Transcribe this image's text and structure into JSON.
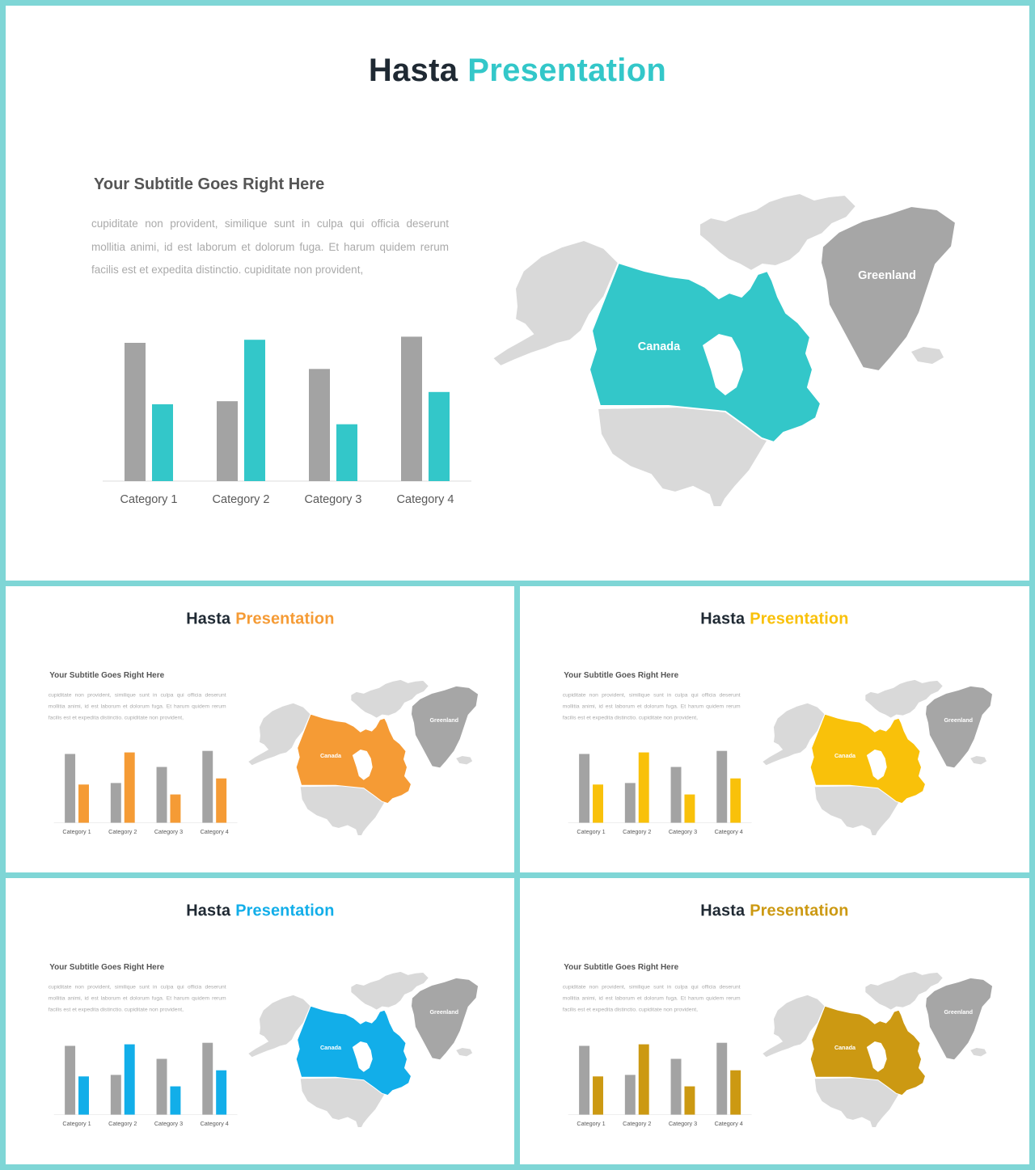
{
  "slides": [
    {
      "title_main": "Hasta",
      "title_accent": "Presentation",
      "accent_color": "#33c7c9",
      "subtitle": "Your Subtitle Goes Right Here",
      "body": "cupiditate non provident, similique sunt in culpa qui officia deserunt mollitia animi, id est laborum et dolorum fuga. Et harum quidem rerum facilis est et expedita distinctio. cupiditate non provident,",
      "map_labels": {
        "canada": "Canada",
        "greenland": "Greenland"
      },
      "chart_data": {
        "type": "bar",
        "categories": [
          "Category 1",
          "Category 2",
          "Category 3",
          "Category 4"
        ],
        "series": [
          {
            "values": [
              4.5,
              2.6,
              3.65,
              4.7
            ],
            "color": "#a3a3a3"
          },
          {
            "values": [
              2.5,
              4.6,
              1.85,
              2.9
            ],
            "color": "#33c7c9"
          }
        ],
        "ylim": [
          0,
          5
        ],
        "grid": false
      }
    },
    {
      "title_main": "Hasta",
      "title_accent": "Presentation",
      "accent_color": "#f59b35",
      "subtitle": "Your Subtitle Goes Right Here",
      "body": "cupiditate non provident, similique sunt in culpa qui officia deserunt mollitia animi, id est laborum et dolorum fuga. Et harum quidem rerum facilis est et expedita distinctio. cupiditate non provident,",
      "map_labels": {
        "canada": "Canada",
        "greenland": "Greenland"
      },
      "chart_data": {
        "type": "bar",
        "categories": [
          "Category 1",
          "Category 2",
          "Category 3",
          "Category 4"
        ],
        "series": [
          {
            "values": [
              4.5,
              2.6,
              3.65,
              4.7
            ],
            "color": "#a3a3a3"
          },
          {
            "values": [
              2.5,
              4.6,
              1.85,
              2.9
            ],
            "color": "#f59b35"
          }
        ],
        "ylim": [
          0,
          5
        ],
        "grid": false
      }
    },
    {
      "title_main": "Hasta",
      "title_accent": "Presentation",
      "accent_color": "#f9c10a",
      "subtitle": "Your Subtitle Goes Right Here",
      "body": "cupiditate non provident, similique sunt in culpa qui officia deserunt mollitia animi, id est laborum et dolorum fuga. Et harum quidem rerum facilis est et expedita distinctio. cupiditate non provident,",
      "map_labels": {
        "canada": "Canada",
        "greenland": "Greenland"
      },
      "chart_data": {
        "type": "bar",
        "categories": [
          "Category 1",
          "Category 2",
          "Category 3",
          "Category 4"
        ],
        "series": [
          {
            "values": [
              4.5,
              2.6,
              3.65,
              4.7
            ],
            "color": "#a3a3a3"
          },
          {
            "values": [
              2.5,
              4.6,
              1.85,
              2.9
            ],
            "color": "#f9c10a"
          }
        ],
        "ylim": [
          0,
          5
        ],
        "grid": false
      }
    },
    {
      "title_main": "Hasta",
      "title_accent": "Presentation",
      "accent_color": "#12aee9",
      "subtitle": "Your Subtitle Goes Right Here",
      "body": "cupiditate non provident, similique sunt in culpa qui officia deserunt mollitia animi, id est laborum et dolorum fuga. Et harum quidem rerum facilis est et expedita distinctio. cupiditate non provident,",
      "map_labels": {
        "canada": "Canada",
        "greenland": "Greenland"
      },
      "chart_data": {
        "type": "bar",
        "categories": [
          "Category 1",
          "Category 2",
          "Category 3",
          "Category 4"
        ],
        "series": [
          {
            "values": [
              4.5,
              2.6,
              3.65,
              4.7
            ],
            "color": "#a3a3a3"
          },
          {
            "values": [
              2.5,
              4.6,
              1.85,
              2.9
            ],
            "color": "#12aee9"
          }
        ],
        "ylim": [
          0,
          5
        ],
        "grid": false
      }
    },
    {
      "title_main": "Hasta",
      "title_accent": "Presentation",
      "accent_color": "#cc9912",
      "subtitle": "Your Subtitle Goes Right Here",
      "body": "cupiditate non provident, similique sunt in culpa qui officia deserunt mollitia animi, id est laborum et dolorum fuga. Et harum quidem rerum facilis est et expedita distinctio. cupiditate non provident,",
      "map_labels": {
        "canada": "Canada",
        "greenland": "Greenland"
      },
      "chart_data": {
        "type": "bar",
        "categories": [
          "Category 1",
          "Category 2",
          "Category 3",
          "Category 4"
        ],
        "series": [
          {
            "values": [
              4.5,
              2.6,
              3.65,
              4.7
            ],
            "color": "#a3a3a3"
          },
          {
            "values": [
              2.5,
              4.6,
              1.85,
              2.9
            ],
            "color": "#cc9912"
          }
        ],
        "ylim": [
          0,
          5
        ],
        "grid": false
      }
    }
  ]
}
